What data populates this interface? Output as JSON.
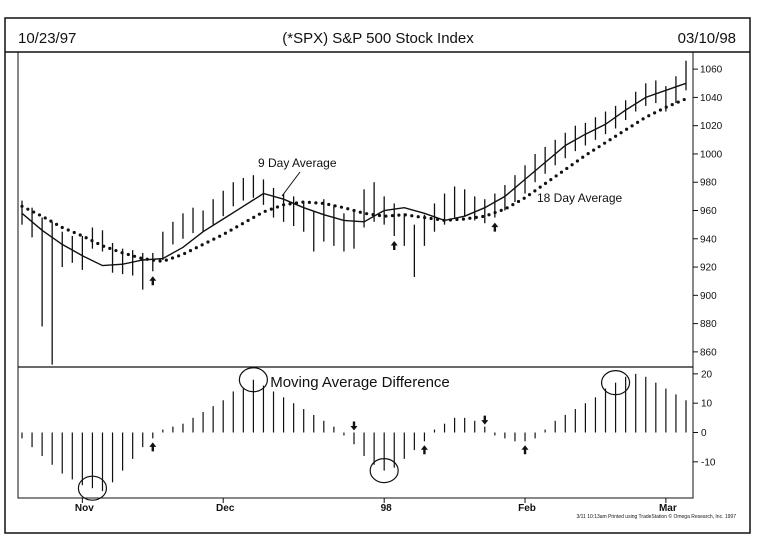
{
  "header": {
    "start_date": "10/23/97",
    "title": "(*SPX) S&P 500 Stock Index",
    "end_date": "03/10/98"
  },
  "footer": {
    "credit": "3/11 10:13am Printed using TradeStation © Omega Research, Inc. 1997"
  },
  "colors": {
    "ink": "#111111",
    "background": "#ffffff"
  },
  "chart_data": [
    {
      "type": "line",
      "title": "(*SPX) S&P 500 Stock Index",
      "ylim": [
        850,
        1070
      ],
      "y_ticks": [
        1060,
        1040,
        1020,
        1000,
        980,
        960,
        940,
        920,
        900,
        880,
        860
      ],
      "x_ticks": [
        "Nov",
        "Dec",
        "98",
        "Feb",
        "Mar"
      ],
      "x_tick_bar_index": [
        6,
        20,
        36,
        50,
        64
      ],
      "grid": false,
      "annotations": [
        "9 Day Average",
        "18 Day Average"
      ],
      "buy_arrows_bar_index": [
        13,
        37,
        47
      ],
      "price_bars": [
        {
          "h": 967,
          "l": 950
        },
        {
          "h": 962,
          "l": 941
        },
        {
          "h": 955,
          "l": 878
        },
        {
          "h": 952,
          "l": 851
        },
        {
          "h": 945,
          "l": 920
        },
        {
          "h": 942,
          "l": 923
        },
        {
          "h": 942,
          "l": 918
        },
        {
          "h": 948,
          "l": 933
        },
        {
          "h": 946,
          "l": 931
        },
        {
          "h": 937,
          "l": 916
        },
        {
          "h": 933,
          "l": 915
        },
        {
          "h": 932,
          "l": 914
        },
        {
          "h": 930,
          "l": 904
        },
        {
          "h": 930,
          "l": 917
        },
        {
          "h": 945,
          "l": 925
        },
        {
          "h": 952,
          "l": 936
        },
        {
          "h": 958,
          "l": 940
        },
        {
          "h": 962,
          "l": 944
        },
        {
          "h": 960,
          "l": 945
        },
        {
          "h": 968,
          "l": 950
        },
        {
          "h": 974,
          "l": 956
        },
        {
          "h": 980,
          "l": 963
        },
        {
          "h": 983,
          "l": 967
        },
        {
          "h": 985,
          "l": 969
        },
        {
          "h": 982,
          "l": 964
        },
        {
          "h": 976,
          "l": 955
        },
        {
          "h": 972,
          "l": 952
        },
        {
          "h": 970,
          "l": 949
        },
        {
          "h": 966,
          "l": 945
        },
        {
          "h": 960,
          "l": 931
        },
        {
          "h": 968,
          "l": 938
        },
        {
          "h": 964,
          "l": 935
        },
        {
          "h": 958,
          "l": 931
        },
        {
          "h": 960,
          "l": 933
        },
        {
          "h": 975,
          "l": 948
        },
        {
          "h": 980,
          "l": 952
        },
        {
          "h": 970,
          "l": 950
        },
        {
          "h": 965,
          "l": 942
        },
        {
          "h": 958,
          "l": 935
        },
        {
          "h": 950,
          "l": 913
        },
        {
          "h": 957,
          "l": 935
        },
        {
          "h": 965,
          "l": 945
        },
        {
          "h": 972,
          "l": 950
        },
        {
          "h": 977,
          "l": 955
        },
        {
          "h": 975,
          "l": 956
        },
        {
          "h": 970,
          "l": 953
        },
        {
          "h": 968,
          "l": 951
        },
        {
          "h": 972,
          "l": 955
        },
        {
          "h": 978,
          "l": 960
        },
        {
          "h": 985,
          "l": 966
        },
        {
          "h": 992,
          "l": 972
        },
        {
          "h": 1000,
          "l": 980
        },
        {
          "h": 1005,
          "l": 986
        },
        {
          "h": 1010,
          "l": 992
        },
        {
          "h": 1015,
          "l": 997
        },
        {
          "h": 1020,
          "l": 1002
        },
        {
          "h": 1022,
          "l": 1006
        },
        {
          "h": 1026,
          "l": 1010
        },
        {
          "h": 1030,
          "l": 1014
        },
        {
          "h": 1034,
          "l": 1018
        },
        {
          "h": 1038,
          "l": 1024
        },
        {
          "h": 1044,
          "l": 1030
        },
        {
          "h": 1050,
          "l": 1034
        },
        {
          "h": 1052,
          "l": 1036
        },
        {
          "h": 1048,
          "l": 1030
        },
        {
          "h": 1055,
          "l": 1036
        },
        {
          "h": 1066,
          "l": 1045
        }
      ],
      "series": [
        {
          "name": "9 Day Average",
          "style": "solid",
          "x": [
            0,
            2,
            4,
            6,
            8,
            10,
            12,
            14,
            16,
            18,
            20,
            22,
            24,
            26,
            28,
            30,
            32,
            34,
            36,
            38,
            40,
            42,
            44,
            46,
            48,
            50,
            52,
            54,
            56,
            58,
            60,
            62,
            64,
            66
          ],
          "values": [
            958,
            946,
            936,
            928,
            921,
            922,
            925,
            926,
            934,
            945,
            954,
            963,
            972,
            968,
            962,
            957,
            953,
            952,
            960,
            962,
            958,
            953,
            956,
            962,
            970,
            982,
            994,
            1006,
            1014,
            1021,
            1031,
            1040,
            1045,
            1050
          ]
        },
        {
          "name": "18 Day Average",
          "style": "dotted",
          "x": [
            0,
            2,
            4,
            6,
            8,
            10,
            12,
            14,
            16,
            18,
            20,
            22,
            24,
            26,
            28,
            30,
            32,
            34,
            36,
            38,
            40,
            42,
            44,
            46,
            48,
            50,
            52,
            54,
            56,
            58,
            60,
            62,
            64,
            66
          ],
          "values": [
            963,
            956,
            948,
            942,
            935,
            930,
            926,
            924,
            929,
            936,
            943,
            951,
            959,
            964,
            966,
            965,
            962,
            958,
            956,
            957,
            955,
            953,
            954,
            956,
            961,
            969,
            979,
            989,
            999,
            1008,
            1017,
            1026,
            1033,
            1039
          ]
        }
      ]
    },
    {
      "type": "bar",
      "title": "Moving Average Difference",
      "ylim": [
        -22,
        22
      ],
      "y_ticks": [
        20,
        10,
        0,
        -10
      ],
      "grid": false,
      "arrows": [
        {
          "bar": 13,
          "dir": "up"
        },
        {
          "bar": 33,
          "dir": "down"
        },
        {
          "bar": 40,
          "dir": "up"
        },
        {
          "bar": 46,
          "dir": "down"
        },
        {
          "bar": 50,
          "dir": "up"
        }
      ],
      "circled_bars": [
        7,
        23,
        36,
        59
      ],
      "values": [
        -2,
        -5,
        -8,
        -11,
        -14,
        -16,
        -18,
        -19,
        -20,
        -17,
        -13,
        -9,
        -5,
        -2,
        1,
        2,
        3,
        5,
        7,
        9,
        11,
        14,
        15,
        18,
        16,
        14,
        12,
        10,
        8,
        6,
        4,
        2,
        -1,
        -4,
        -8,
        -11,
        -13,
        -12,
        -9,
        -6,
        -3,
        1,
        3,
        5,
        5,
        4,
        2,
        -1,
        -2,
        -3,
        -3,
        -2,
        1,
        4,
        6,
        8,
        10,
        12,
        15,
        17,
        19,
        20,
        19,
        17,
        15,
        13,
        11
      ]
    }
  ]
}
